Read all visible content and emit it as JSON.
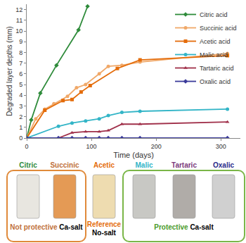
{
  "chart_data": {
    "type": "line",
    "x_label": "Time (days)",
    "y_label": "Degraded layer depths (mm)",
    "xlim": [
      0,
      330
    ],
    "xticks": [
      0,
      100,
      200,
      300
    ],
    "ylim": [
      0,
      12.5
    ],
    "yticks": [
      0,
      1,
      2,
      3,
      4,
      5,
      6,
      7,
      8,
      9,
      10,
      11,
      12
    ],
    "grid": false,
    "legend": "top right",
    "series": [
      {
        "name": "Citric acid",
        "color": "#2e8b3a",
        "marker": "diamond",
        "x": [
          0,
          7,
          21,
          46,
          80,
          94
        ],
        "values": [
          0,
          1.7,
          4.2,
          6.8,
          10.1,
          12.3
        ]
      },
      {
        "name": "Succinic acid",
        "color": "#f0a868",
        "marker": "circle",
        "x": [
          0,
          14,
          28,
          42,
          63,
          77,
          91,
          112,
          126,
          147,
          175,
          310
        ],
        "values": [
          0,
          1.8,
          2.7,
          3.2,
          3.9,
          4.7,
          5.0,
          6.0,
          6.7,
          6.8,
          7.1,
          7.9
        ]
      },
      {
        "name": "Acetic acid",
        "color": "#e46c0a",
        "marker": "square",
        "x": [
          0,
          28,
          56,
          70,
          84,
          98,
          140,
          175,
          310
        ],
        "values": [
          0,
          2.6,
          3.5,
          3.6,
          4.3,
          4.9,
          6.5,
          7.3,
          7.7
        ]
      },
      {
        "name": "Malic acid",
        "color": "#33b5c7",
        "marker": "circle",
        "x": [
          0,
          49,
          70,
          91,
          112,
          126,
          147,
          175,
          310
        ],
        "values": [
          0,
          1.1,
          1.4,
          1.6,
          1.8,
          2.1,
          2.4,
          2.5,
          2.7
        ]
      },
      {
        "name": "Tartaric acid",
        "color": "#a0304a",
        "marker": "triangle-up",
        "x": [
          0,
          49,
          70,
          91,
          112,
          126,
          147,
          175,
          310
        ],
        "values": [
          0,
          0,
          0.5,
          0.6,
          0.6,
          0.7,
          1.3,
          1.3,
          1.5
        ]
      },
      {
        "name": "Oxalic acid",
        "color": "#3a3a9a",
        "marker": "diamond",
        "x": [
          0,
          49,
          70,
          91,
          112,
          126,
          147,
          175,
          310
        ],
        "values": [
          0,
          0,
          0,
          0,
          0,
          0,
          0,
          0,
          0
        ]
      }
    ]
  },
  "photo_panel": {
    "samples": [
      {
        "label": "Citric",
        "color": "#2e8b3a"
      },
      {
        "label": "Succinic",
        "color": "#c0703a"
      },
      {
        "label": "Acetic",
        "color": "#e46c0a"
      },
      {
        "label": "Malic",
        "color": "#33b5c7"
      },
      {
        "label": "Tartaric",
        "color": "#7a3a7a"
      },
      {
        "label": "Oxalic",
        "color": "#2a2a8a"
      }
    ],
    "groups": [
      {
        "samples": [
          "Citric",
          "Succinic"
        ],
        "box_color": "#e08a3a",
        "caption": [
          {
            "text": "Not protective",
            "color": "#c0703a"
          },
          {
            "text": "Ca-salt",
            "color": "#000000"
          }
        ]
      },
      {
        "samples": [
          "Acetic"
        ],
        "caption": [
          {
            "text": "Reference",
            "color": "#e46c0a"
          },
          {
            "text": "No-salt",
            "color": "#000000"
          }
        ]
      },
      {
        "samples": [
          "Malic",
          "Tartaric",
          "Oxalic"
        ],
        "box_color": "#7ab648",
        "caption": [
          {
            "text": "Protective",
            "color": "#4a9a2a"
          },
          {
            "text": "Ca-salt",
            "color": "#000000"
          }
        ]
      }
    ]
  }
}
